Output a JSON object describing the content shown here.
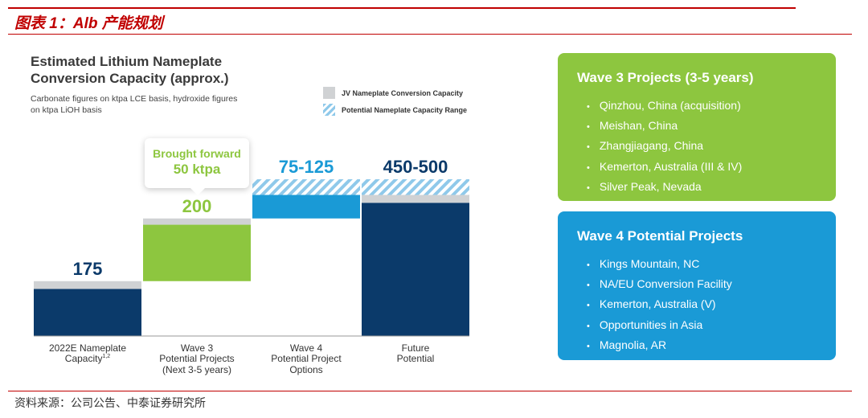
{
  "header": {
    "figure_title": "图表 1：Alb 产能规划"
  },
  "footer": {
    "source": "资料来源：公司公告、中泰证券研究所"
  },
  "chart_data": {
    "type": "bar",
    "title": "Estimated Lithium Nameplate Conversion Capacity (approx.)",
    "subtitle": "Carbonate figures on ktpa LCE basis, hydroxide figures on ktpa LiOH basis",
    "categories": [
      {
        "line1": "2022E Nameplate",
        "line2": "Capacity",
        "sup": "1,2",
        "line3": ""
      },
      {
        "line1": "Wave 3",
        "line2": "Potential Projects",
        "sup": "",
        "line3": "(Next 3-5 years)"
      },
      {
        "line1": "Wave 4",
        "line2": "Potential Project",
        "sup": "",
        "line3": "Options"
      },
      {
        "line1": "Future",
        "line2": "Potential",
        "sup": "",
        "line3": ""
      }
    ],
    "value_labels": [
      "175",
      "200",
      "75-125",
      "450-500"
    ],
    "bars": [
      {
        "bottom": 0,
        "solid": 150,
        "jv": 25,
        "range": 0
      },
      {
        "bottom": 175,
        "solid": 180,
        "jv": 20,
        "range": 0
      },
      {
        "bottom": 375,
        "solid": 75,
        "jv": 0,
        "range": 50
      },
      {
        "bottom": 0,
        "solid": 425,
        "jv": 25,
        "range": 50
      }
    ],
    "ylim": [
      0,
      500
    ],
    "legend": [
      {
        "label": "JV Nameplate Conversion Capacity",
        "style": "solid"
      },
      {
        "label": "Potential Nameplate Capacity Range",
        "style": "hatched"
      }
    ],
    "legend_position": "top-right",
    "annotation": {
      "line1": "Brought forward",
      "line2": "50 ktpa"
    },
    "colors": {
      "navy": "#0b3a6a",
      "green": "#8dc63f",
      "blue": "#1a9ad6",
      "jv_gray": "#d0d2d4",
      "hatch": "#8fc9ea"
    }
  },
  "panels": {
    "wave3": {
      "title": "Wave 3 Projects (3-5 years)",
      "items": [
        "Qinzhou, China (acquisition)",
        "Meishan, China",
        "Zhangjiagang, China",
        "Kemerton, Australia (III & IV)",
        "Silver Peak, Nevada"
      ]
    },
    "wave4": {
      "title": "Wave 4 Potential Projects",
      "items": [
        "Kings Mountain, NC",
        "NA/EU Conversion Facility",
        "Kemerton, Australia (V)",
        "Opportunities in Asia",
        "Magnolia, AR"
      ]
    }
  }
}
